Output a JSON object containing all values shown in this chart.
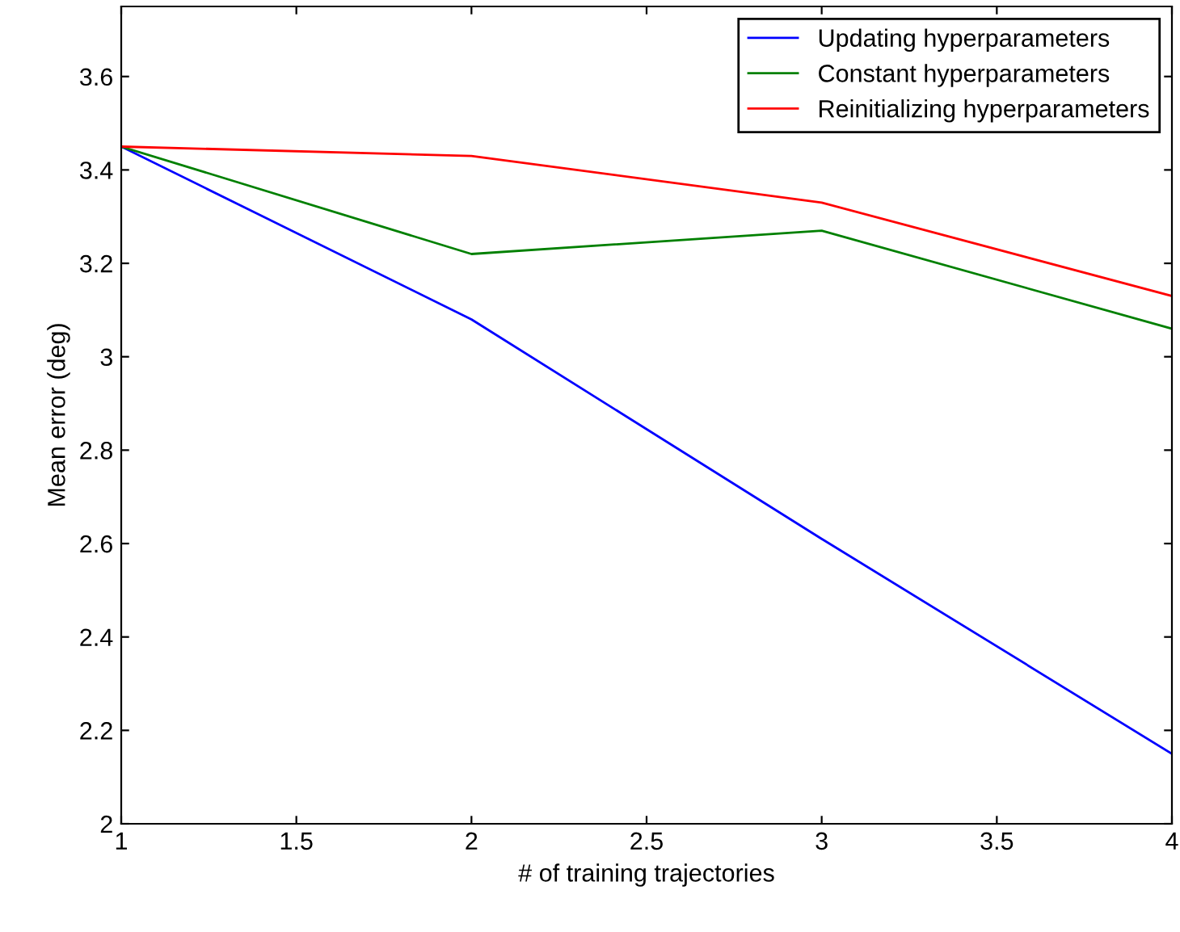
{
  "chart_data": {
    "type": "line",
    "xlabel": "# of training trajectories",
    "ylabel": "Mean error (deg)",
    "x": [
      1,
      2,
      3,
      4
    ],
    "series": [
      {
        "name": "Updating hyperparameters",
        "color": "#0000ff",
        "values": [
          3.45,
          3.08,
          2.61,
          2.15
        ]
      },
      {
        "name": "Constant hyperparameters",
        "color": "#008000",
        "values": [
          3.45,
          3.22,
          3.27,
          3.06
        ]
      },
      {
        "name": "Reinitializing hyperparameters",
        "color": "#ff0000",
        "values": [
          3.45,
          3.43,
          3.33,
          3.13
        ]
      }
    ],
    "xlim": [
      1,
      4
    ],
    "xticks": [
      1,
      1.5,
      2,
      2.5,
      3,
      3.5,
      4
    ],
    "ylim": [
      2,
      3.75
    ],
    "yticks": [
      2,
      2.2,
      2.4,
      2.6,
      2.8,
      3,
      3.2,
      3.4,
      3.6
    ],
    "grid": false,
    "legend": "top right",
    "marker": "none",
    "line_style": "solid"
  }
}
